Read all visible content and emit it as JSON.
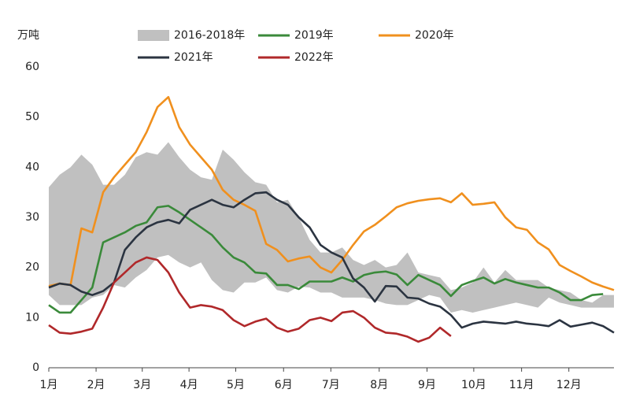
{
  "chart_data": {
    "type": "line",
    "y_label": "万吨",
    "x": [
      0,
      1,
      2,
      3,
      4,
      5,
      6,
      7,
      8,
      9,
      10,
      11,
      12,
      13,
      14,
      15,
      16,
      17,
      18,
      19,
      20,
      21,
      22,
      23,
      24,
      25,
      26,
      27,
      28,
      29,
      30,
      31,
      32,
      33,
      34,
      35,
      36,
      37,
      38,
      39,
      40,
      41,
      42,
      43,
      44,
      45,
      46,
      47,
      48,
      49,
      50,
      51,
      52
    ],
    "xlim": [
      0,
      52
    ],
    "xticks": [
      {
        "value": 0,
        "label": "1月"
      },
      {
        "value": 4.35,
        "label": "2月"
      },
      {
        "value": 8.6,
        "label": "3月"
      },
      {
        "value": 12.9,
        "label": "4月"
      },
      {
        "value": 17.2,
        "label": "5月"
      },
      {
        "value": 21.6,
        "label": "6月"
      },
      {
        "value": 25.95,
        "label": "7月"
      },
      {
        "value": 30.4,
        "label": "8月"
      },
      {
        "value": 34.8,
        "label": "9月"
      },
      {
        "value": 39.1,
        "label": "10月"
      },
      {
        "value": 43.5,
        "label": "11月"
      },
      {
        "value": 47.85,
        "label": "12月"
      }
    ],
    "ylim": [
      0,
      60
    ],
    "yticks": [
      0,
      10,
      20,
      30,
      40,
      50,
      60
    ],
    "series": [
      {
        "name": "2016-2018年",
        "color": "#c0c0c0",
        "high": [
          36,
          38.5,
          40,
          42.5,
          40.5,
          36.5,
          36.5,
          38.5,
          42,
          43,
          42.5,
          45,
          42,
          39.5,
          38,
          37.5,
          43.5,
          41.5,
          39,
          37,
          36.5,
          33,
          33.5,
          30,
          25.5,
          23,
          23,
          24,
          21.5,
          20.5,
          21.5,
          20,
          20.5,
          23,
          19,
          18.5,
          18,
          15.5,
          16,
          17,
          20,
          17,
          19.5,
          17.5,
          17.5,
          17.5,
          16,
          15.5,
          15,
          13.5,
          13,
          14.5,
          14.5
        ],
        "low": [
          14.5,
          12.5,
          12.5,
          12.5,
          14,
          14.5,
          16.5,
          16,
          18,
          19.5,
          22,
          22.5,
          21,
          20,
          21,
          17.5,
          15.5,
          15,
          17,
          17,
          18,
          15.5,
          15,
          16.2,
          16,
          15,
          15,
          14,
          14,
          14,
          13.5,
          12.8,
          12.5,
          12.5,
          13.5,
          14.5,
          14,
          11,
          11.5,
          11,
          11.5,
          12,
          12.5,
          13,
          12.5,
          12,
          14,
          13,
          12.5,
          12,
          12,
          12,
          12
        ]
      },
      {
        "name": "2019年",
        "color": "#3a8a3a",
        "values": [
          12.5,
          11,
          11,
          13.5,
          16,
          25,
          26,
          27,
          28.3,
          29,
          32,
          32.3,
          31,
          29.5,
          28,
          26.5,
          24,
          22,
          21,
          19,
          18.8,
          16.5,
          16.5,
          15.7,
          17.2,
          17.2,
          17.2,
          18,
          17.2,
          18.5,
          19,
          19.2,
          18.6,
          16.5,
          18.5,
          17.5,
          16.5,
          14.3,
          16.5,
          17.3,
          18,
          16.8,
          17.7,
          17,
          16.5,
          16,
          16,
          15,
          13.5,
          13.5,
          14.5,
          14.7,
          null
        ]
      },
      {
        "name": "2020年",
        "color": "#f0901e",
        "values": [
          16.3,
          16.8,
          16.5,
          27.8,
          27,
          35,
          38,
          40.5,
          43,
          47,
          52,
          54,
          48,
          44.5,
          42,
          39.5,
          35.5,
          33.5,
          32.5,
          31.3,
          24.7,
          23.5,
          21.2,
          21.8,
          22.2,
          20,
          19,
          21.5,
          24.5,
          27.2,
          28.5,
          30.2,
          32,
          32.8,
          33.3,
          33.6,
          33.8,
          33,
          34.8,
          32.5,
          32.7,
          33,
          30,
          28,
          27.5,
          25,
          23.6,
          20.5,
          19.3,
          18.2,
          17,
          16.2,
          15.5
        ]
      },
      {
        "name": "2021年",
        "color": "#2b3441",
        "values": [
          16,
          16.8,
          16.5,
          15.2,
          14.5,
          15.3,
          17,
          23.5,
          26,
          28,
          29,
          29.5,
          28.8,
          31.5,
          32.5,
          33.5,
          32.5,
          32,
          33.5,
          34.8,
          35,
          33.5,
          32.5,
          30,
          28,
          24.5,
          23,
          22,
          17.8,
          16,
          13.2,
          16.3,
          16.2,
          14,
          13.8,
          12.8,
          12.2,
          10.5,
          8,
          8.8,
          9.2,
          9,
          8.8,
          9.2,
          8.8,
          8.6,
          8.3,
          9.5,
          8.2,
          8.6,
          9,
          8.3,
          7
        ]
      },
      {
        "name": "2022年",
        "color": "#b0282a",
        "values": [
          8.5,
          7,
          6.8,
          7.2,
          7.8,
          12,
          17,
          19,
          21,
          22,
          21.5,
          19,
          15,
          12,
          12.5,
          12.2,
          11.5,
          9.5,
          8.3,
          9.2,
          9.8,
          8,
          7.2,
          7.8,
          9.5,
          10,
          9.3,
          11,
          11.3,
          10,
          8,
          7,
          6.8,
          6.2,
          5.2,
          6,
          8,
          6.3,
          null,
          null,
          null,
          null,
          null,
          null,
          null,
          null,
          null,
          null,
          null,
          null,
          null,
          null,
          null
        ]
      }
    ]
  }
}
